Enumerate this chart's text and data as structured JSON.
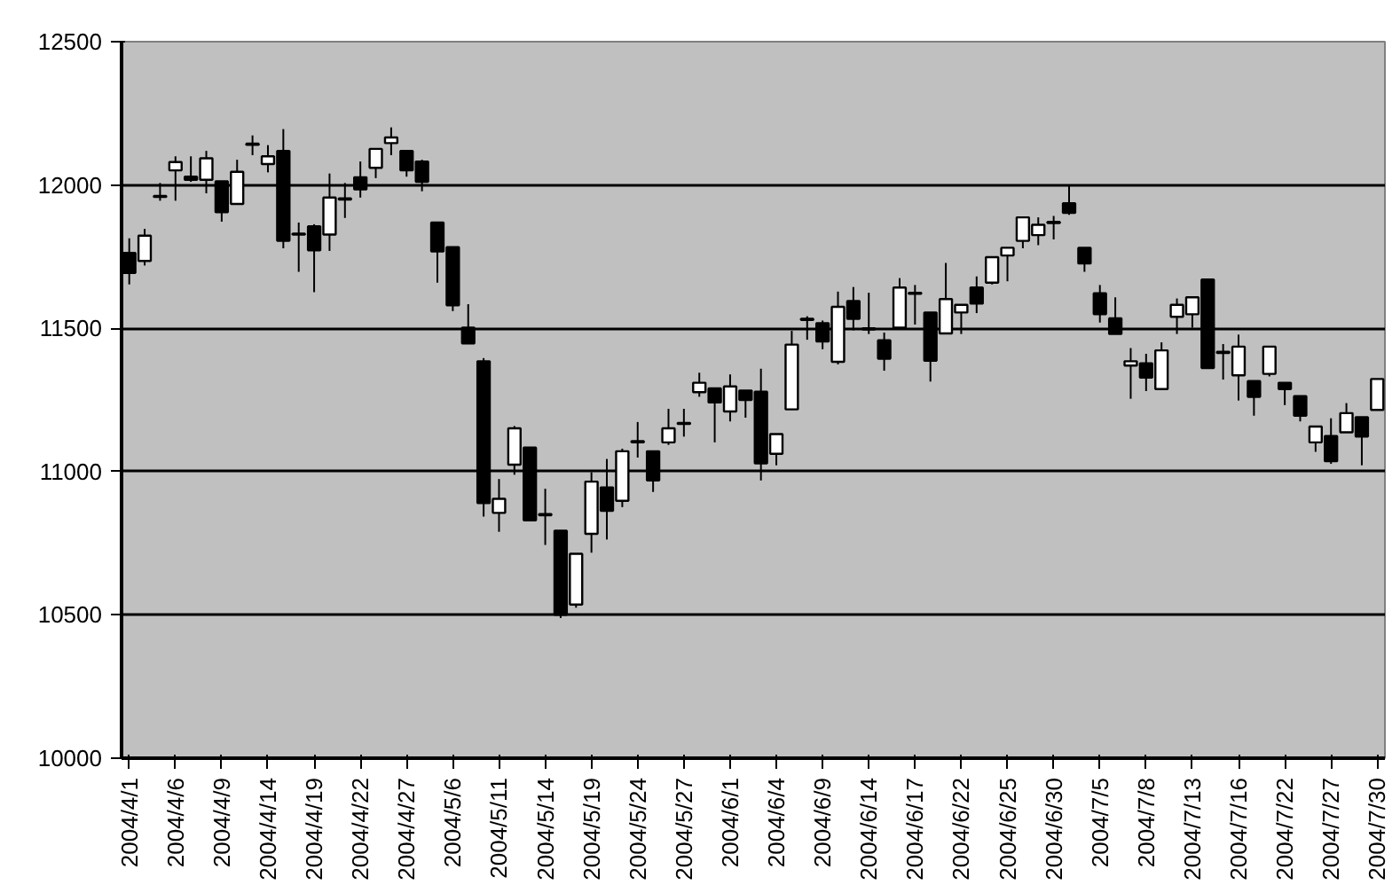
{
  "chart_data": {
    "type": "candlestick",
    "categories": [
      "2004/4/1",
      null,
      null,
      "2004/4/6",
      null,
      null,
      "2004/4/9",
      null,
      null,
      "2004/4/14",
      null,
      null,
      "2004/4/19",
      null,
      null,
      "2004/4/22",
      null,
      null,
      "2004/4/27",
      null,
      null,
      "2004/5/6",
      null,
      null,
      "2004/5/11",
      null,
      null,
      "2004/5/14",
      null,
      null,
      "2004/5/19",
      null,
      null,
      "2004/5/24",
      null,
      null,
      "2004/5/27",
      null,
      null,
      "2004/6/1",
      null,
      null,
      "2004/6/4",
      null,
      null,
      "2004/6/9",
      null,
      null,
      "2004/6/14",
      null,
      null,
      "2004/6/17",
      null,
      null,
      "2004/6/22",
      null,
      null,
      "2004/6/25",
      null,
      null,
      "2004/6/30",
      null,
      null,
      "2004/7/5",
      null,
      null,
      "2004/7/8",
      null,
      null,
      "2004/7/13",
      null,
      null,
      "2004/7/16",
      null,
      null,
      "2004/7/22",
      null,
      null,
      "2004/7/27",
      null,
      null,
      "2004/7/30"
    ],
    "ohlc": [
      [
        11763,
        11814,
        11653,
        11693
      ],
      [
        11735,
        11847,
        11719,
        11823
      ],
      [
        11962,
        12007,
        11945,
        11958
      ],
      [
        12051,
        12100,
        11945,
        12080
      ],
      [
        12029,
        12100,
        12011,
        12018
      ],
      [
        12018,
        12119,
        11971,
        12093
      ],
      [
        12013,
        12013,
        11872,
        11905
      ],
      [
        11934,
        12088,
        11934,
        12046
      ],
      [
        12144,
        12173,
        12104,
        12140
      ],
      [
        12073,
        12139,
        12044,
        12100
      ],
      [
        12119,
        12195,
        11779,
        11805
      ],
      [
        11830,
        11869,
        11697,
        11827
      ],
      [
        11856,
        11863,
        11626,
        11772
      ],
      [
        11827,
        12040,
        11770,
        11956
      ],
      [
        11953,
        12007,
        11885,
        11949
      ],
      [
        12027,
        12082,
        11956,
        11985
      ],
      [
        12060,
        12126,
        12024,
        12126
      ],
      [
        12146,
        12201,
        12104,
        12166
      ],
      [
        12119,
        12119,
        12029,
        12051
      ],
      [
        12082,
        12088,
        11978,
        12011
      ],
      [
        11869,
        11869,
        11659,
        11768
      ],
      [
        11783,
        11783,
        11560,
        11580
      ],
      [
        11502,
        11584,
        11447,
        11447
      ],
      [
        11385,
        11396,
        10843,
        10890
      ],
      [
        10856,
        10974,
        10790,
        10905
      ],
      [
        11024,
        11159,
        10989,
        11151
      ],
      [
        11084,
        11084,
        10830,
        10830
      ],
      [
        10852,
        10940,
        10744,
        10848
      ],
      [
        10794,
        10794,
        10489,
        10500
      ],
      [
        10536,
        10713,
        10525,
        10713
      ],
      [
        10783,
        10998,
        10717,
        10965
      ],
      [
        10945,
        11044,
        10763,
        10863
      ],
      [
        10898,
        11080,
        10876,
        11071
      ],
      [
        11106,
        11173,
        11049,
        11102
      ],
      [
        11071,
        11071,
        10929,
        10969
      ],
      [
        11102,
        11219,
        11093,
        11151
      ],
      [
        11170,
        11219,
        11122,
        11166
      ],
      [
        11277,
        11345,
        11261,
        11310
      ],
      [
        11290,
        11290,
        11102,
        11241
      ],
      [
        11210,
        11339,
        11175,
        11297
      ],
      [
        11283,
        11283,
        11188,
        11250
      ],
      [
        11279,
        11359,
        10969,
        11029
      ],
      [
        11062,
        11131,
        11022,
        11131
      ],
      [
        11217,
        11491,
        11217,
        11443
      ],
      [
        11533,
        11542,
        11460,
        11529
      ],
      [
        11518,
        11527,
        11427,
        11454
      ],
      [
        11383,
        11628,
        11374,
        11575
      ],
      [
        11595,
        11644,
        11493,
        11533
      ],
      [
        11500,
        11624,
        11480,
        11496
      ],
      [
        11458,
        11485,
        11352,
        11394
      ],
      [
        11502,
        11675,
        11502,
        11642
      ],
      [
        11624,
        11651,
        11513,
        11620
      ],
      [
        11555,
        11555,
        11314,
        11387
      ],
      [
        11482,
        11728,
        11482,
        11602
      ],
      [
        11555,
        11582,
        11480,
        11582
      ],
      [
        11642,
        11681,
        11553,
        11586
      ],
      [
        11659,
        11748,
        11653,
        11748
      ],
      [
        11754,
        11781,
        11664,
        11781
      ],
      [
        11805,
        11887,
        11779,
        11887
      ],
      [
        11825,
        11887,
        11790,
        11861
      ],
      [
        11871,
        11892,
        11810,
        11867
      ],
      [
        11936,
        12000,
        11896,
        11903
      ],
      [
        11781,
        11781,
        11697,
        11726
      ],
      [
        11622,
        11651,
        11520,
        11549
      ],
      [
        11535,
        11608,
        11480,
        11480
      ],
      [
        11370,
        11431,
        11254,
        11385
      ],
      [
        11378,
        11411,
        11281,
        11328
      ],
      [
        11288,
        11451,
        11288,
        11423
      ],
      [
        11540,
        11604,
        11480,
        11582
      ],
      [
        11549,
        11608,
        11502,
        11608
      ],
      [
        11670,
        11670,
        11361,
        11361
      ],
      [
        11418,
        11445,
        11321,
        11414
      ],
      [
        11336,
        11478,
        11248,
        11436
      ],
      [
        11316,
        11316,
        11195,
        11261
      ],
      [
        11341,
        11436,
        11332,
        11436
      ],
      [
        11310,
        11310,
        11232,
        11288
      ],
      [
        11263,
        11263,
        11175,
        11195
      ],
      [
        11102,
        11157,
        11069,
        11157
      ],
      [
        11124,
        11186,
        11027,
        11036
      ],
      [
        11137,
        11239,
        11137,
        11204
      ],
      [
        11190,
        11190,
        11022,
        11122
      ],
      [
        11215,
        11323,
        11215,
        11323
      ]
    ],
    "colors": [
      "#000000",
      "#ffffff",
      "#000000",
      "#ffffff",
      "#000000",
      "#ffffff",
      "#000000",
      "#ffffff",
      "#000000",
      "#ffffff",
      "#000000",
      "#000000",
      "#000000",
      "#ffffff",
      "#000000",
      "#000000",
      "#ffffff",
      "#ffffff",
      "#000000",
      "#000000",
      "#000000",
      "#000000",
      "#000000",
      "#000000",
      "#ffffff",
      "#ffffff",
      "#000000",
      "#000000",
      "#000000",
      "#ffffff",
      "#ffffff",
      "#000000",
      "#ffffff",
      "#000000",
      "#000000",
      "#ffffff",
      "#000000",
      "#ffffff",
      "#000000",
      "#ffffff",
      "#000000",
      "#000000",
      "#ffffff",
      "#ffffff",
      "#000000",
      "#000000",
      "#ffffff",
      "#000000",
      "#000000",
      "#000000",
      "#ffffff",
      "#000000",
      "#000000",
      "#ffffff",
      "#ffffff",
      "#000000",
      "#ffffff",
      "#ffffff",
      "#ffffff",
      "#ffffff",
      "#000000",
      "#000000",
      "#000000",
      "#000000",
      "#000000",
      "#ffffff",
      "#000000",
      "#ffffff",
      "#ffffff",
      "#ffffff",
      "#000000",
      "#000000",
      "#ffffff",
      "#000000",
      "#ffffff",
      "#000000",
      "#000000",
      "#ffffff",
      "#000000",
      "#ffffff",
      "#000000",
      "#ffffff"
    ],
    "ylim": [
      10000,
      12500
    ],
    "yticks": [
      10000,
      10500,
      11000,
      11500,
      12000,
      12500
    ],
    "grid": "y"
  }
}
